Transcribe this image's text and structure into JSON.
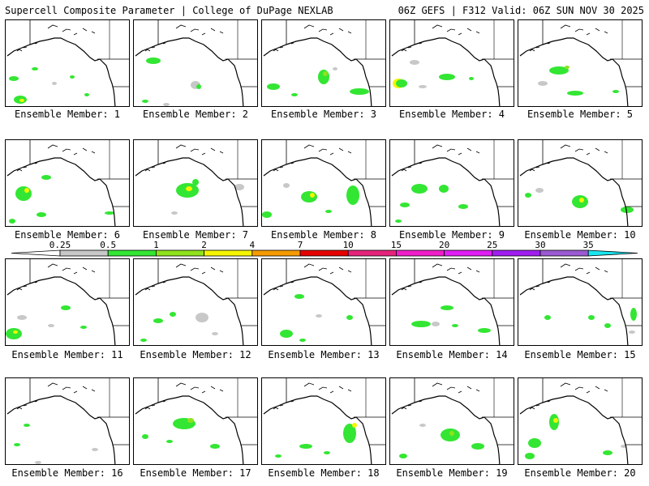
{
  "header": {
    "title_left": "Supercell Composite Parameter | College of DuPage NEXLAB",
    "title_right": "06Z GEFS | F312 Valid: 06Z SUN NOV 30 2025"
  },
  "colorbar": {
    "levels": [
      "0.25",
      "0.5",
      "1",
      "2",
      "4",
      "7",
      "10",
      "15",
      "20",
      "25",
      "30",
      "35"
    ],
    "colors": [
      "#c8c8c8",
      "#33e633",
      "#8fe21c",
      "#f5f500",
      "#f59a00",
      "#e60000",
      "#e6237a",
      "#f01ec8",
      "#e11ef5",
      "#a01ef0",
      "#9a5ad2",
      "#19e6f0"
    ]
  },
  "colors": {
    "gray": "#c8c8c8",
    "green": "#33e633",
    "lime": "#8fe21c",
    "yellow": "#f5f500"
  },
  "members": [
    {
      "label": "Ensemble Member: 1"
    },
    {
      "label": "Ensemble Member: 2"
    },
    {
      "label": "Ensemble Member: 3"
    },
    {
      "label": "Ensemble Member: 4"
    },
    {
      "label": "Ensemble Member: 5"
    },
    {
      "label": "Ensemble Member: 6"
    },
    {
      "label": "Ensemble Member: 7"
    },
    {
      "label": "Ensemble Member: 8"
    },
    {
      "label": "Ensemble Member: 9"
    },
    {
      "label": "Ensemble Member: 10"
    },
    {
      "label": "Ensemble Member: 11"
    },
    {
      "label": "Ensemble Member: 12"
    },
    {
      "label": "Ensemble Member: 13"
    },
    {
      "label": "Ensemble Member: 14"
    },
    {
      "label": "Ensemble Member: 15"
    },
    {
      "label": "Ensemble Member: 16"
    },
    {
      "label": "Ensemble Member: 17"
    },
    {
      "label": "Ensemble Member: 18"
    },
    {
      "label": "Ensemble Member: 19"
    },
    {
      "label": "Ensemble Member: 20"
    }
  ]
}
